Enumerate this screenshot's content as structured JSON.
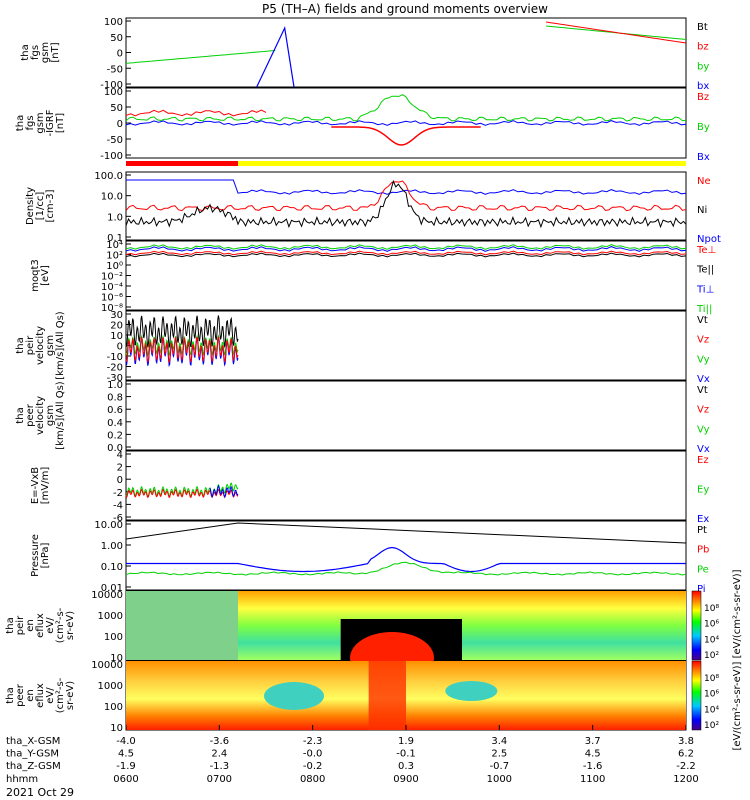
{
  "figure": {
    "title": "P5 (TH–A) fields and ground moments overview",
    "date": "2021 Oct 29"
  },
  "chart_data": {
    "type": "line",
    "x_label": "hhmm",
    "x_ticks": [
      "0600",
      "0700",
      "0800",
      "0900",
      "1000",
      "1100",
      "1200"
    ],
    "x_range": [
      6.0,
      12.0
    ],
    "ephemeris": [
      {
        "label": "tha_X-GSM",
        "values": [
          "-4.0",
          "-3.6",
          "-2.3",
          "1.9",
          "3.4",
          "3.7",
          "3.8"
        ]
      },
      {
        "label": "tha_Y-GSM",
        "values": [
          "4.5",
          "2.4",
          "-0.0",
          "-0.1",
          "2.5",
          "4.5",
          "6.2"
        ]
      },
      {
        "label": "tha_Z-GSM",
        "values": [
          "-1.9",
          "-1.3",
          "-0.2",
          "0.3",
          "-0.7",
          "-1.6",
          "-2.2"
        ]
      }
    ],
    "panels": [
      {
        "id": "fgs",
        "ylabel": [
          "tha",
          "fgs",
          "gsm",
          "[nT]"
        ],
        "ticks": [
          "100",
          "50",
          "0",
          "-50",
          "-100"
        ],
        "ylim": [
          -100,
          100
        ],
        "legend": [
          {
            "name": "Bt",
            "color": "#000000"
          },
          {
            "name": "bz",
            "color": "#ff0000"
          },
          {
            "name": "by",
            "color": "#00d000"
          },
          {
            "name": "bx",
            "color": "#0000ff"
          }
        ]
      },
      {
        "id": "fgs_dipole",
        "ylabel": [
          "tha",
          "fgs",
          "gsm",
          "-IGRF",
          "[nT]"
        ],
        "ticks": [
          "100",
          "50",
          "0",
          "-50",
          "-100"
        ],
        "ylim": [
          -120,
          120
        ],
        "legend": [
          {
            "name": "Bz",
            "color": "#ff0000"
          },
          {
            "name": "By",
            "color": "#00d000"
          },
          {
            "name": "Bx",
            "color": "#0000ff"
          }
        ]
      },
      {
        "id": "density",
        "ylabel": [
          "Density",
          "[1/cc]",
          "[cm-3]"
        ],
        "ticks": [
          "100.0",
          "10.0",
          "1.0",
          "0.1"
        ],
        "log": true,
        "legend": [
          {
            "name": "Ne",
            "color": "#ff0000"
          },
          {
            "name": "Ni",
            "color": "#000000"
          },
          {
            "name": "Npot",
            "color": "#0000ff"
          }
        ]
      },
      {
        "id": "temp",
        "ylabel": [
          "moqt3",
          "[eV]"
        ],
        "ticks": [
          "10⁴",
          "10²",
          "10⁰",
          "10⁻²",
          "10⁻⁴",
          "10⁻⁶",
          "10⁻⁸"
        ],
        "log": true,
        "legend": [
          {
            "name": "Te⊥",
            "color": "#ff0000"
          },
          {
            "name": "Te||",
            "color": "#000000"
          },
          {
            "name": "Ti⊥",
            "color": "#0000ff"
          },
          {
            "name": "Ti||",
            "color": "#00d000"
          }
        ]
      },
      {
        "id": "peir_vel",
        "ylabel": [
          "tha",
          "peir",
          "velocity",
          "gsm",
          "[km/s](All Qs)"
        ],
        "ticks": [
          "30",
          "20",
          "10",
          "0",
          "-10",
          "-20",
          "-30"
        ],
        "ylim": [
          -30,
          30
        ],
        "legend": [
          {
            "name": "Vt",
            "color": "#000000"
          },
          {
            "name": "Vz",
            "color": "#ff0000"
          },
          {
            "name": "Vy",
            "color": "#00d000"
          },
          {
            "name": "Vx",
            "color": "#0000ff"
          }
        ]
      },
      {
        "id": "peer_vel",
        "ylabel": [
          "tha",
          "peer",
          "velocity",
          "gsm",
          "[km/s](All Qs)"
        ],
        "ticks": [
          "1.0",
          "0.8",
          "0.6",
          "0.4",
          "0.2",
          "0.0"
        ],
        "ylim": [
          0,
          1
        ],
        "legend": [
          {
            "name": "Vt",
            "color": "#000000"
          },
          {
            "name": "Vz",
            "color": "#ff0000"
          },
          {
            "name": "Vy",
            "color": "#00d000"
          },
          {
            "name": "Vx",
            "color": "#0000ff"
          }
        ]
      },
      {
        "id": "efield",
        "ylabel": [
          "E=-VxB",
          "[mV/m]"
        ],
        "ticks": [
          "4",
          "2",
          "0",
          "-2",
          "-4",
          "-6"
        ],
        "ylim": [
          -6,
          4
        ],
        "legend": [
          {
            "name": "Ez",
            "color": "#ff0000"
          },
          {
            "name": "Ey",
            "color": "#00d000"
          },
          {
            "name": "Ex",
            "color": "#0000ff"
          }
        ]
      },
      {
        "id": "pressure",
        "ylabel": [
          "Pressure",
          "[nPa]"
        ],
        "ticks": [
          "10.00",
          "1.00",
          "0.10",
          "0.01"
        ],
        "log": true,
        "legend": [
          {
            "name": "Pt",
            "color": "#000000"
          },
          {
            "name": "Pb",
            "color": "#ff0000"
          },
          {
            "name": "Pe",
            "color": "#00d000"
          },
          {
            "name": "Pi",
            "color": "#0000ff"
          }
        ]
      },
      {
        "id": "peir_eflux",
        "ylabel": [
          "tha",
          "peir",
          "en",
          "eflux",
          "eV/",
          "(cm²-s-",
          "sr-eV)"
        ],
        "ticks": [
          "10000",
          "1000",
          "100",
          "10"
        ],
        "spectrogram": true
      },
      {
        "id": "peer_eflux",
        "ylabel": [
          "tha",
          "peer",
          "en",
          "eflux",
          "eV/",
          "(cm²-s-",
          "sr-eV)"
        ],
        "ticks": [
          "10000",
          "1000",
          "100",
          "10"
        ],
        "spectrogram": true
      }
    ],
    "colorbars": [
      {
        "ticks": [
          "10⁸",
          "10⁶",
          "10⁴",
          "10²"
        ]
      },
      {
        "ticks": [
          "10⁸",
          "10⁶",
          "10⁴",
          "10²"
        ]
      }
    ],
    "colorbar_label": "[eV/(cm²-s-sr-eV)] [eV/(cm²-s-sr-eV)]"
  }
}
